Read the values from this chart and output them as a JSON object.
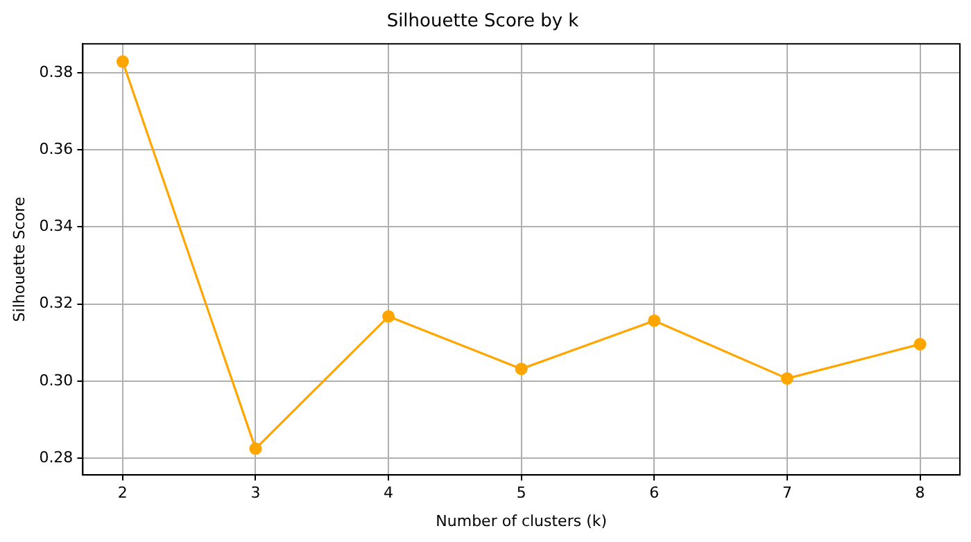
{
  "chart_data": {
    "type": "line",
    "title": "Silhouette Score by k",
    "xlabel": "Number of clusters (k)",
    "ylabel": "Silhouette Score",
    "x": [
      2,
      3,
      4,
      5,
      6,
      7,
      8
    ],
    "series": [
      {
        "color": "#ffa500",
        "values": [
          0.3829,
          0.2825,
          0.3168,
          0.3032,
          0.3157,
          0.3007,
          0.3096
        ]
      }
    ],
    "xlim": [
      1.7,
      8.3
    ],
    "xticks": [
      2,
      3,
      4,
      5,
      6,
      7,
      8
    ],
    "ylim": [
      0.2757,
      0.3875
    ],
    "yticks": [
      0.28,
      {
        "value": 0.3,
        "label": "0.30"
      },
      0.32,
      0.34,
      0.36,
      0.38
    ],
    "grid": true,
    "marker": "circle",
    "line_style": "solid"
  }
}
